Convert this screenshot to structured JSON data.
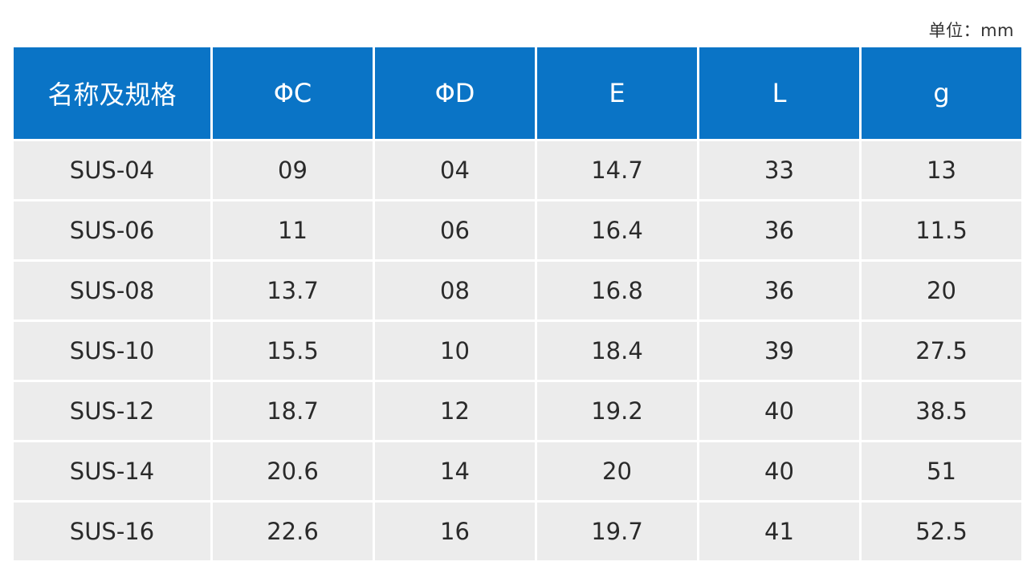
{
  "unit_note": "单位：mm",
  "table": {
    "headers": [
      "名称及规格",
      "ΦC",
      "ΦD",
      "E",
      "L",
      "g"
    ],
    "rows": [
      [
        "SUS-04",
        "09",
        "04",
        "14.7",
        "33",
        "13"
      ],
      [
        "SUS-06",
        "11",
        "06",
        "16.4",
        "36",
        "11.5"
      ],
      [
        "SUS-08",
        "13.7",
        "08",
        "16.8",
        "36",
        "20"
      ],
      [
        "SUS-10",
        "15.5",
        "10",
        "18.4",
        "39",
        "27.5"
      ],
      [
        "SUS-12",
        "18.7",
        "12",
        "19.2",
        "40",
        "38.5"
      ],
      [
        "SUS-14",
        "20.6",
        "14",
        "20",
        "40",
        "51"
      ],
      [
        "SUS-16",
        "22.6",
        "16",
        "19.7",
        "41",
        "52.5"
      ]
    ]
  },
  "colors": {
    "header_background": "#0a74c6",
    "header_text": "#ffffff",
    "cell_background": "#ececec",
    "cell_text": "#2a2a2a"
  }
}
